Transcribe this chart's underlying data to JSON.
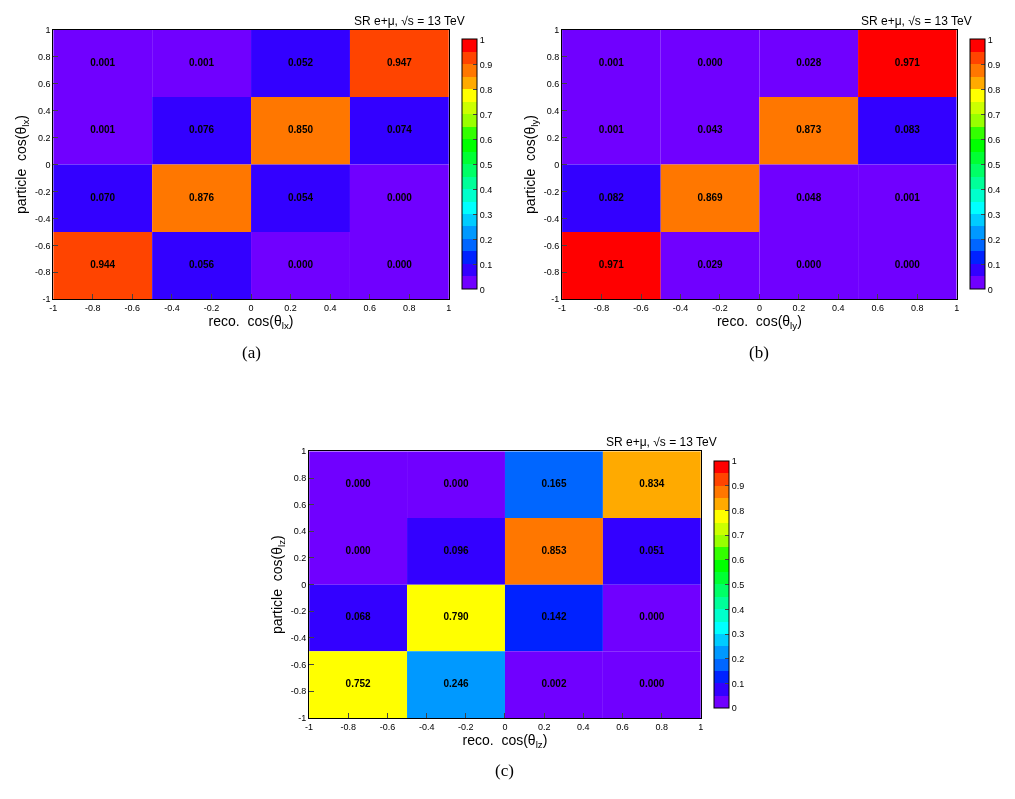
{
  "chart_data": [
    {
      "type": "heatmap",
      "title": "SR e+μ, √s = 13 TeV",
      "xlabel": "reco.  cos(θ$_{lx}$)",
      "ylabel": "particle  cos(θ$_{lx}$)",
      "annotations": [
        "(a)"
      ],
      "cells": [
        [
          0.001,
          0.001,
          0.052,
          0.947
        ],
        [
          0.001,
          0.076,
          0.85,
          0.074
        ],
        [
          0.07,
          0.876,
          0.054,
          0.0
        ],
        [
          0.944,
          0.056,
          0.0,
          0.0
        ]
      ],
      "cell_labels": [
        [
          "0.001",
          "0.001",
          "0.052",
          "0.947"
        ],
        [
          "0.001",
          "0.076",
          "0.850",
          "0.074"
        ],
        [
          "0.070",
          "0.876",
          "0.054",
          "0.000"
        ],
        [
          "0.944",
          "0.056",
          "0.000",
          "0.000"
        ]
      ],
      "xlim": [
        -1,
        1
      ],
      "ylim": [
        -1,
        1
      ],
      "xticks": [
        -1,
        -0.8,
        -0.6,
        -0.4,
        -0.2,
        0,
        0.2,
        0.4,
        0.6,
        0.8,
        1
      ],
      "yticks": [
        -1,
        -0.8,
        -0.6,
        -0.4,
        -0.2,
        0,
        0.2,
        0.4,
        0.6,
        0.8,
        1
      ],
      "clim": [
        0,
        1
      ],
      "cticks": [
        0,
        0.1,
        0.2,
        0.3,
        0.4,
        0.5,
        0.6,
        0.7,
        0.8,
        0.9,
        1
      ]
    },
    {
      "type": "heatmap",
      "title": "SR e+μ, √s = 13 TeV",
      "xlabel": "reco.  cos(θ$_{ly}$)",
      "ylabel": "particle  cos(θ$_{ly}$)",
      "annotations": [
        "(b)"
      ],
      "cells": [
        [
          0.001,
          0.0,
          0.028,
          0.971
        ],
        [
          0.001,
          0.043,
          0.873,
          0.083
        ],
        [
          0.082,
          0.869,
          0.048,
          0.001
        ],
        [
          0.971,
          0.029,
          0.0,
          0.0
        ]
      ],
      "cell_labels": [
        [
          "0.001",
          "0.000",
          "0.028",
          "0.971"
        ],
        [
          "0.001",
          "0.043",
          "0.873",
          "0.083"
        ],
        [
          "0.082",
          "0.869",
          "0.048",
          "0.001"
        ],
        [
          "0.971",
          "0.029",
          "0.000",
          "0.000"
        ]
      ],
      "xlim": [
        -1,
        1
      ],
      "ylim": [
        -1,
        1
      ],
      "xticks": [
        -1,
        -0.8,
        -0.6,
        -0.4,
        -0.2,
        0,
        0.2,
        0.4,
        0.6,
        0.8,
        1
      ],
      "yticks": [
        -1,
        -0.8,
        -0.6,
        -0.4,
        -0.2,
        0,
        0.2,
        0.4,
        0.6,
        0.8,
        1
      ],
      "clim": [
        0,
        1
      ],
      "cticks": [
        0,
        0.1,
        0.2,
        0.3,
        0.4,
        0.5,
        0.6,
        0.7,
        0.8,
        0.9,
        1
      ]
    },
    {
      "type": "heatmap",
      "title": "SR e+μ, √s = 13 TeV",
      "xlabel": "reco.  cos(θ$_{lz}$)",
      "ylabel": "particle  cos(θ$_{lz}$)",
      "annotations": [
        "(c)"
      ],
      "cells": [
        [
          0.0,
          0.0,
          0.165,
          0.834
        ],
        [
          0.0,
          0.096,
          0.853,
          0.051
        ],
        [
          0.068,
          0.79,
          0.142,
          0.0
        ],
        [
          0.752,
          0.246,
          0.002,
          0.0
        ]
      ],
      "cell_labels": [
        [
          "0.000",
          "0.000",
          "0.165",
          "0.834"
        ],
        [
          "0.000",
          "0.096",
          "0.853",
          "0.051"
        ],
        [
          "0.068",
          "0.790",
          "0.142",
          "0.000"
        ],
        [
          "0.752",
          "0.246",
          "0.002",
          "0.000"
        ]
      ],
      "xlim": [
        -1,
        1
      ],
      "ylim": [
        -1,
        1
      ],
      "xticks": [
        -1,
        -0.8,
        -0.6,
        -0.4,
        -0.2,
        0,
        0.2,
        0.4,
        0.6,
        0.8,
        1
      ],
      "yticks": [
        -1,
        -0.8,
        -0.6,
        -0.4,
        -0.2,
        0,
        0.2,
        0.4,
        0.6,
        0.8,
        1
      ],
      "clim": [
        0,
        1
      ],
      "cticks": [
        0,
        0.1,
        0.2,
        0.3,
        0.4,
        0.5,
        0.6,
        0.7,
        0.8,
        0.9,
        1
      ]
    }
  ]
}
